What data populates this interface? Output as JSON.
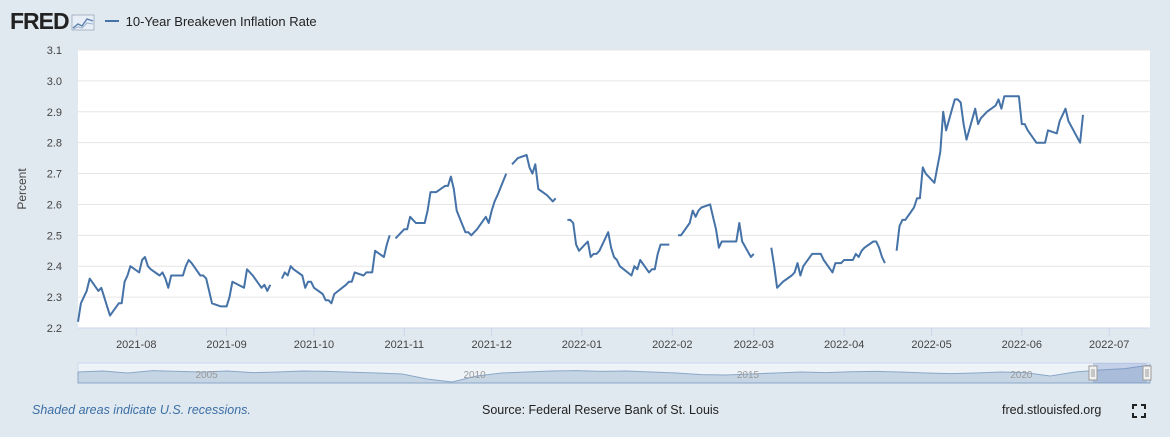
{
  "header": {
    "logo_text": "FRED",
    "logo_icon": "fred-chart-icon"
  },
  "footer": {
    "recession_note": "Shaded areas indicate U.S. recessions.",
    "source": "Source: Federal Reserve Bank of St. Louis",
    "site": "fred.stlouisfed.org",
    "fullscreen_icon": "fullscreen-icon"
  },
  "colors": {
    "line": "#4572a7",
    "background": "#e1e9f0",
    "plot_bg": "#ffffff",
    "navigator_fill": "#c6d5e4"
  },
  "chart_data": {
    "type": "line",
    "title": "",
    "ylabel": "Percent",
    "xlabel": "",
    "ylim": [
      2.2,
      3.1
    ],
    "yticks": [
      "2.2",
      "2.3",
      "2.4",
      "2.5",
      "2.6",
      "2.7",
      "2.8",
      "2.9",
      "3.0",
      "3.1"
    ],
    "xticks": [
      "2021-08",
      "2021-09",
      "2021-10",
      "2021-11",
      "2021-12",
      "2022-01",
      "2022-02",
      "2022-03",
      "2022-04",
      "2022-05",
      "2022-06",
      "2022-07"
    ],
    "grid": "horizontal",
    "legend_position": "top-left",
    "series": [
      {
        "name": "10-Year Breakeven Inflation Rate",
        "segments": [
          [
            [
              "2021-07-12",
              2.22
            ],
            [
              "2021-07-13",
              2.28
            ],
            [
              "2021-07-14",
              2.3
            ],
            [
              "2021-07-15",
              2.32
            ],
            [
              "2021-07-16",
              2.36
            ],
            [
              "2021-07-19",
              2.32
            ],
            [
              "2021-07-20",
              2.33
            ],
            [
              "2021-07-21",
              2.3
            ],
            [
              "2021-07-22",
              2.27
            ],
            [
              "2021-07-23",
              2.24
            ],
            [
              "2021-07-26",
              2.28
            ],
            [
              "2021-07-27",
              2.28
            ],
            [
              "2021-07-28",
              2.35
            ],
            [
              "2021-07-29",
              2.37
            ],
            [
              "2021-07-30",
              2.4
            ],
            [
              "2021-08-02",
              2.38
            ],
            [
              "2021-08-03",
              2.42
            ],
            [
              "2021-08-04",
              2.43
            ],
            [
              "2021-08-05",
              2.4
            ],
            [
              "2021-08-06",
              2.39
            ],
            [
              "2021-08-09",
              2.37
            ],
            [
              "2021-08-10",
              2.38
            ],
            [
              "2021-08-11",
              2.36
            ],
            [
              "2021-08-12",
              2.33
            ],
            [
              "2021-08-13",
              2.37
            ],
            [
              "2021-08-16",
              2.37
            ],
            [
              "2021-08-17",
              2.37
            ],
            [
              "2021-08-18",
              2.4
            ],
            [
              "2021-08-19",
              2.42
            ],
            [
              "2021-08-20",
              2.41
            ],
            [
              "2021-08-23",
              2.37
            ],
            [
              "2021-08-24",
              2.37
            ],
            [
              "2021-08-25",
              2.36
            ],
            [
              "2021-08-26",
              2.32
            ],
            [
              "2021-08-27",
              2.28
            ],
            [
              "2021-08-30",
              2.27
            ],
            [
              "2021-08-31",
              2.27
            ],
            [
              "2021-09-01",
              2.27
            ],
            [
              "2021-09-02",
              2.3
            ],
            [
              "2021-09-03",
              2.35
            ],
            [
              "2021-09-07",
              2.33
            ],
            [
              "2021-09-08",
              2.39
            ],
            [
              "2021-09-09",
              2.38
            ],
            [
              "2021-09-10",
              2.37
            ],
            [
              "2021-09-13",
              2.33
            ],
            [
              "2021-09-14",
              2.34
            ],
            [
              "2021-09-15",
              2.32
            ],
            [
              "2021-09-16",
              2.34
            ]
          ],
          [
            [
              "2021-09-20",
              2.36
            ],
            [
              "2021-09-21",
              2.38
            ],
            [
              "2021-09-22",
              2.37
            ],
            [
              "2021-09-23",
              2.4
            ],
            [
              "2021-09-24",
              2.39
            ],
            [
              "2021-09-27",
              2.37
            ],
            [
              "2021-09-28",
              2.33
            ],
            [
              "2021-09-29",
              2.35
            ],
            [
              "2021-09-30",
              2.35
            ],
            [
              "2021-10-01",
              2.33
            ],
            [
              "2021-10-04",
              2.31
            ],
            [
              "2021-10-05",
              2.29
            ],
            [
              "2021-10-06",
              2.29
            ],
            [
              "2021-10-07",
              2.28
            ],
            [
              "2021-10-08",
              2.31
            ],
            [
              "2021-10-12",
              2.34
            ],
            [
              "2021-10-13",
              2.35
            ],
            [
              "2021-10-14",
              2.35
            ],
            [
              "2021-10-15",
              2.38
            ],
            [
              "2021-10-18",
              2.37
            ],
            [
              "2021-10-19",
              2.38
            ],
            [
              "2021-10-20",
              2.38
            ],
            [
              "2021-10-21",
              2.38
            ],
            [
              "2021-10-22",
              2.45
            ],
            [
              "2021-10-25",
              2.43
            ],
            [
              "2021-10-26",
              2.47
            ],
            [
              "2021-10-27",
              2.5
            ]
          ],
          [
            [
              "2021-10-29",
              2.49
            ],
            [
              "2021-11-01",
              2.52
            ],
            [
              "2021-11-02",
              2.52
            ],
            [
              "2021-11-03",
              2.56
            ],
            [
              "2021-11-04",
              2.55
            ],
            [
              "2021-11-05",
              2.54
            ],
            [
              "2021-11-08",
              2.54
            ],
            [
              "2021-11-09",
              2.58
            ],
            [
              "2021-11-10",
              2.64
            ],
            [
              "2021-11-12",
              2.64
            ],
            [
              "2021-11-15",
              2.66
            ],
            [
              "2021-11-16",
              2.66
            ],
            [
              "2021-11-17",
              2.69
            ],
            [
              "2021-11-18",
              2.65
            ],
            [
              "2021-11-19",
              2.58
            ],
            [
              "2021-11-22",
              2.51
            ],
            [
              "2021-11-23",
              2.51
            ],
            [
              "2021-11-24",
              2.5
            ],
            [
              "2021-11-26",
              2.52
            ],
            [
              "2021-11-29",
              2.56
            ],
            [
              "2021-11-30",
              2.54
            ],
            [
              "2021-12-01",
              2.58
            ],
            [
              "2021-12-02",
              2.61
            ],
            [
              "2021-12-03",
              2.63
            ],
            [
              "2021-12-06",
              2.7
            ]
          ],
          [
            [
              "2021-12-08",
              2.73
            ],
            [
              "2021-12-09",
              2.74
            ],
            [
              "2021-12-10",
              2.75
            ],
            [
              "2021-12-13",
              2.76
            ],
            [
              "2021-12-14",
              2.72
            ],
            [
              "2021-12-15",
              2.7
            ],
            [
              "2021-12-16",
              2.73
            ],
            [
              "2021-12-17",
              2.65
            ],
            [
              "2021-12-20",
              2.63
            ],
            [
              "2021-12-21",
              2.62
            ],
            [
              "2021-12-22",
              2.61
            ],
            [
              "2021-12-23",
              2.62
            ]
          ],
          [
            [
              "2021-12-27",
              2.55
            ],
            [
              "2021-12-28",
              2.55
            ],
            [
              "2021-12-29",
              2.54
            ],
            [
              "2021-12-30",
              2.47
            ],
            [
              "2021-12-31",
              2.45
            ],
            [
              "2022-01-03",
              2.48
            ],
            [
              "2022-01-04",
              2.43
            ],
            [
              "2022-01-05",
              2.44
            ],
            [
              "2022-01-06",
              2.44
            ],
            [
              "2022-01-07",
              2.45
            ],
            [
              "2022-01-10",
              2.51
            ],
            [
              "2022-01-11",
              2.46
            ],
            [
              "2022-01-12",
              2.43
            ],
            [
              "2022-01-13",
              2.42
            ],
            [
              "2022-01-14",
              2.4
            ],
            [
              "2022-01-18",
              2.37
            ],
            [
              "2022-01-19",
              2.4
            ],
            [
              "2022-01-20",
              2.39
            ],
            [
              "2022-01-21",
              2.42
            ],
            [
              "2022-01-24",
              2.38
            ],
            [
              "2022-01-25",
              2.39
            ],
            [
              "2022-01-26",
              2.39
            ],
            [
              "2022-01-27",
              2.44
            ],
            [
              "2022-01-28",
              2.47
            ],
            [
              "2022-01-31",
              2.47
            ]
          ],
          [
            [
              "2022-02-03",
              2.5
            ],
            [
              "2022-02-04",
              2.5
            ],
            [
              "2022-02-07",
              2.54
            ],
            [
              "2022-02-08",
              2.58
            ],
            [
              "2022-02-09",
              2.56
            ],
            [
              "2022-02-10",
              2.58
            ],
            [
              "2022-02-11",
              2.59
            ],
            [
              "2022-02-14",
              2.6
            ],
            [
              "2022-02-15",
              2.56
            ],
            [
              "2022-02-16",
              2.52
            ],
            [
              "2022-02-17",
              2.46
            ],
            [
              "2022-02-18",
              2.48
            ],
            [
              "2022-02-22",
              2.48
            ],
            [
              "2022-02-23",
              2.48
            ],
            [
              "2022-02-24",
              2.54
            ],
            [
              "2022-02-25",
              2.48
            ],
            [
              "2022-02-28",
              2.43
            ],
            [
              "2022-03-01",
              2.44
            ]
          ],
          [
            [
              "2022-03-07",
              2.46
            ],
            [
              "2022-03-08",
              2.4
            ],
            [
              "2022-03-09",
              2.33
            ],
            [
              "2022-03-10",
              2.34
            ],
            [
              "2022-03-11",
              2.35
            ],
            [
              "2022-03-14",
              2.37
            ],
            [
              "2022-03-15",
              2.38
            ],
            [
              "2022-03-16",
              2.41
            ],
            [
              "2022-03-17",
              2.37
            ],
            [
              "2022-03-18",
              2.4
            ],
            [
              "2022-03-21",
              2.44
            ],
            [
              "2022-03-22",
              2.44
            ],
            [
              "2022-03-23",
              2.44
            ],
            [
              "2022-03-24",
              2.44
            ],
            [
              "2022-03-25",
              2.42
            ],
            [
              "2022-03-28",
              2.38
            ],
            [
              "2022-03-29",
              2.41
            ],
            [
              "2022-03-30",
              2.41
            ],
            [
              "2022-03-31",
              2.41
            ],
            [
              "2022-04-01",
              2.42
            ],
            [
              "2022-04-04",
              2.42
            ],
            [
              "2022-04-05",
              2.44
            ],
            [
              "2022-04-06",
              2.43
            ],
            [
              "2022-04-07",
              2.45
            ],
            [
              "2022-04-08",
              2.46
            ],
            [
              "2022-04-11",
              2.48
            ],
            [
              "2022-04-12",
              2.48
            ],
            [
              "2022-04-13",
              2.46
            ],
            [
              "2022-04-14",
              2.43
            ],
            [
              "2022-04-15",
              2.41
            ]
          ],
          [
            [
              "2022-04-19",
              2.45
            ],
            [
              "2022-04-20",
              2.53
            ],
            [
              "2022-04-21",
              2.55
            ],
            [
              "2022-04-22",
              2.55
            ],
            [
              "2022-04-25",
              2.59
            ],
            [
              "2022-04-26",
              2.62
            ],
            [
              "2022-04-27",
              2.62
            ],
            [
              "2022-04-28",
              2.72
            ],
            [
              "2022-04-29",
              2.7
            ],
            [
              "2022-05-02",
              2.67
            ],
            [
              "2022-05-03",
              2.72
            ],
            [
              "2022-05-04",
              2.77
            ],
            [
              "2022-05-05",
              2.9
            ],
            [
              "2022-05-06",
              2.84
            ],
            [
              "2022-05-09",
              2.94
            ],
            [
              "2022-05-10",
              2.94
            ],
            [
              "2022-05-11",
              2.93
            ],
            [
              "2022-05-12",
              2.86
            ],
            [
              "2022-05-13",
              2.81
            ],
            [
              "2022-05-16",
              2.91
            ],
            [
              "2022-05-17",
              2.86
            ],
            [
              "2022-05-18",
              2.88
            ],
            [
              "2022-05-19",
              2.89
            ],
            [
              "2022-05-20",
              2.9
            ],
            [
              "2022-05-23",
              2.92
            ],
            [
              "2022-05-24",
              2.94
            ],
            [
              "2022-05-25",
              2.91
            ],
            [
              "2022-05-26",
              2.95
            ],
            [
              "2022-05-27",
              2.95
            ],
            [
              "2022-05-31",
              2.95
            ],
            [
              "2022-06-01",
              2.86
            ],
            [
              "2022-06-02",
              2.86
            ],
            [
              "2022-06-03",
              2.84
            ],
            [
              "2022-06-06",
              2.8
            ],
            [
              "2022-06-07",
              2.8
            ],
            [
              "2022-06-08",
              2.8
            ],
            [
              "2022-06-09",
              2.8
            ],
            [
              "2022-06-10",
              2.84
            ],
            [
              "2022-06-13",
              2.83
            ],
            [
              "2022-06-14",
              2.87
            ],
            [
              "2022-06-15",
              2.89
            ],
            [
              "2022-06-16",
              2.91
            ],
            [
              "2022-06-17",
              2.87
            ],
            [
              "2022-06-21",
              2.8
            ],
            [
              "2022-06-22",
              2.89
            ]
          ]
        ]
      }
    ]
  },
  "navigator": {
    "labels": [
      "2005",
      "2010",
      "2015",
      "2020"
    ]
  }
}
